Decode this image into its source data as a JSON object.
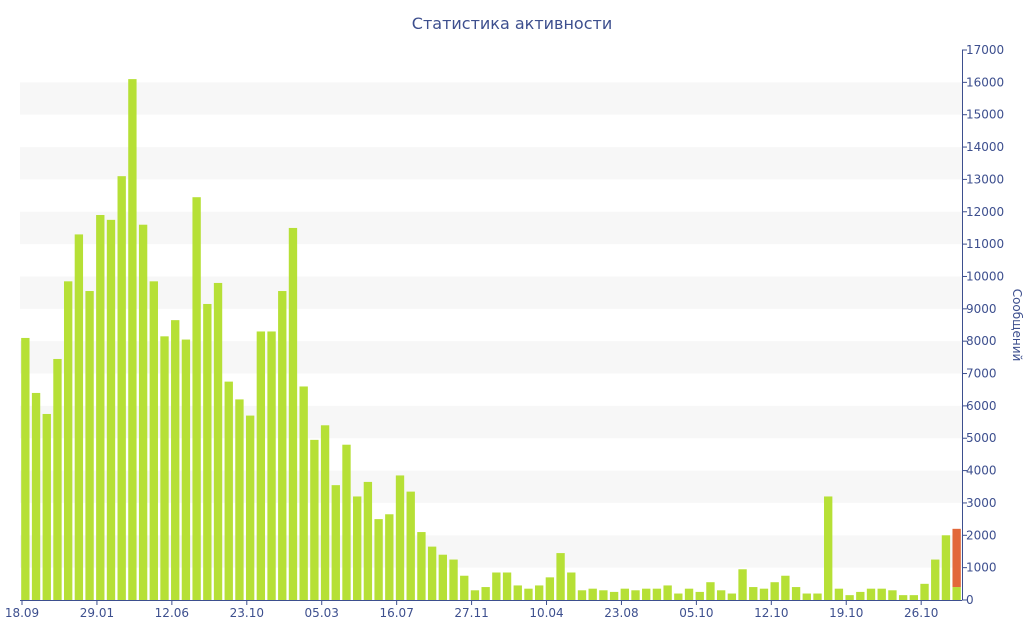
{
  "chart_data": {
    "type": "bar",
    "title": "Статистика активности",
    "ylabel": "Сообщений",
    "xlabel": "",
    "ylim": [
      0,
      17000
    ],
    "y_ticks": [
      0,
      1000,
      2000,
      3000,
      4000,
      5000,
      6000,
      7000,
      8000,
      9000,
      10000,
      11000,
      12000,
      13000,
      14000,
      15000,
      16000,
      17000
    ],
    "x_tick_labels": [
      {
        "label": "18.09",
        "index": 0
      },
      {
        "label": "29.01",
        "index": 7
      },
      {
        "label": "12.06",
        "index": 14
      },
      {
        "label": "23.10",
        "index": 21
      },
      {
        "label": "05.03",
        "index": 28
      },
      {
        "label": "16.07",
        "index": 35
      },
      {
        "label": "27.11",
        "index": 42
      },
      {
        "label": "10.04",
        "index": 49
      },
      {
        "label": "23.08",
        "index": 56
      },
      {
        "label": "05.10",
        "index": 63
      },
      {
        "label": "12.10",
        "index": 70
      },
      {
        "label": "19.10",
        "index": 77
      },
      {
        "label": "26.10",
        "index": 84
      }
    ],
    "colors": {
      "bar": "#b6e036",
      "highlight": "#e2683a",
      "text": "#3d4f8e",
      "band": "#f7f7f7",
      "axis": "#3d4f8e"
    },
    "grid": "alternating-bands",
    "y_axis_position": "right",
    "values": [
      8100,
      6400,
      5750,
      7450,
      9850,
      11300,
      9550,
      11900,
      11750,
      13100,
      16100,
      11600,
      9850,
      8150,
      8650,
      8050,
      12450,
      9150,
      9800,
      6750,
      6200,
      5700,
      8300,
      8300,
      9550,
      11500,
      6600,
      4950,
      5400,
      3550,
      4800,
      3200,
      3650,
      2500,
      2650,
      3850,
      3350,
      2100,
      1650,
      1400,
      1250,
      750,
      300,
      400,
      850,
      850,
      450,
      350,
      450,
      700,
      1450,
      850,
      300,
      350,
      300,
      250,
      350,
      300,
      350,
      350,
      450,
      200,
      350,
      250,
      550,
      300,
      200,
      950,
      400,
      350,
      550,
      750,
      400,
      200,
      200,
      3200,
      350,
      150,
      250,
      350,
      350,
      300,
      150,
      150,
      500,
      1250,
      2000,
      400
    ],
    "last_bar_extra": 1800
  }
}
